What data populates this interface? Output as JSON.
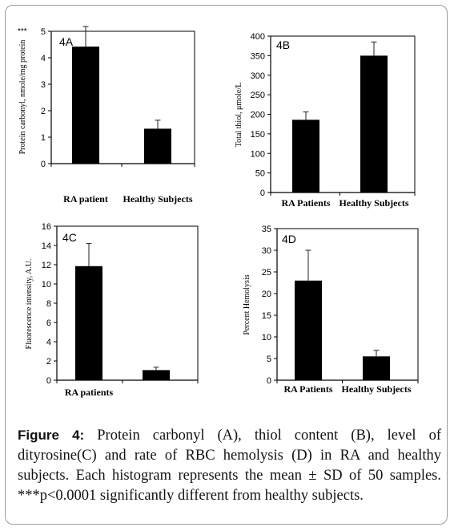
{
  "chart_data": [
    {
      "id": "A",
      "type": "bar",
      "panel_label": "4A",
      "ylabel": "Protein carbonyl, nmole/mg protein",
      "ylim": [
        0,
        5
      ],
      "yticks": [
        0,
        1,
        2,
        3,
        4,
        5
      ],
      "categories": [
        "RA patient",
        "Healthy Subjects"
      ],
      "values": [
        4.42,
        1.32
      ],
      "sd": [
        0.76,
        0.32
      ],
      "annotations": [
        "***",
        ""
      ],
      "corner_note": "***"
    },
    {
      "id": "B",
      "type": "bar",
      "panel_label": "4B",
      "ylabel": "Total thiol, μmole/L",
      "ylim": [
        0,
        400
      ],
      "yticks": [
        0,
        50,
        100,
        150,
        200,
        250,
        300,
        350,
        400
      ],
      "categories": [
        "RA Patients",
        "Healthy Subjects"
      ],
      "values": [
        186,
        350
      ],
      "sd": [
        20,
        35
      ],
      "annotations": [
        "***",
        ""
      ]
    },
    {
      "id": "C",
      "type": "bar",
      "panel_label": "4C",
      "ylabel": "Fluorescence intensity, A.U.",
      "ylim": [
        0,
        16
      ],
      "yticks": [
        0,
        2,
        4,
        6,
        8,
        10,
        12,
        14,
        16
      ],
      "categories": [
        "RA patients",
        ""
      ],
      "values": [
        11.85,
        1.05
      ],
      "sd": [
        2.35,
        0.3
      ],
      "annotations": [
        "***",
        ""
      ]
    },
    {
      "id": "D",
      "type": "bar",
      "panel_label": "4D",
      "ylabel": "Percent Hemolysis",
      "ylim": [
        0,
        35
      ],
      "yticks": [
        0,
        5,
        10,
        15,
        20,
        25,
        30,
        35
      ],
      "categories": [
        "RA Patients",
        "Healthy Subjects"
      ],
      "values": [
        23,
        5.5
      ],
      "sd": [
        7,
        1.4
      ],
      "annotations": [
        "***",
        ""
      ]
    }
  ],
  "caption": {
    "label": "Figure 4",
    "separator": ":",
    "text": " Protein carbonyl (A), thiol content (B), level of dityrosine(C) and rate of RBC hemolysis (D) in RA and healthy subjects. Each histogram represents the mean ± SD of 50 samples. ***p<0.0001 significantly different from healthy subjects."
  },
  "colors": {
    "bar": "#000000",
    "axis": "#000000",
    "frame": "#9a9a9a"
  }
}
